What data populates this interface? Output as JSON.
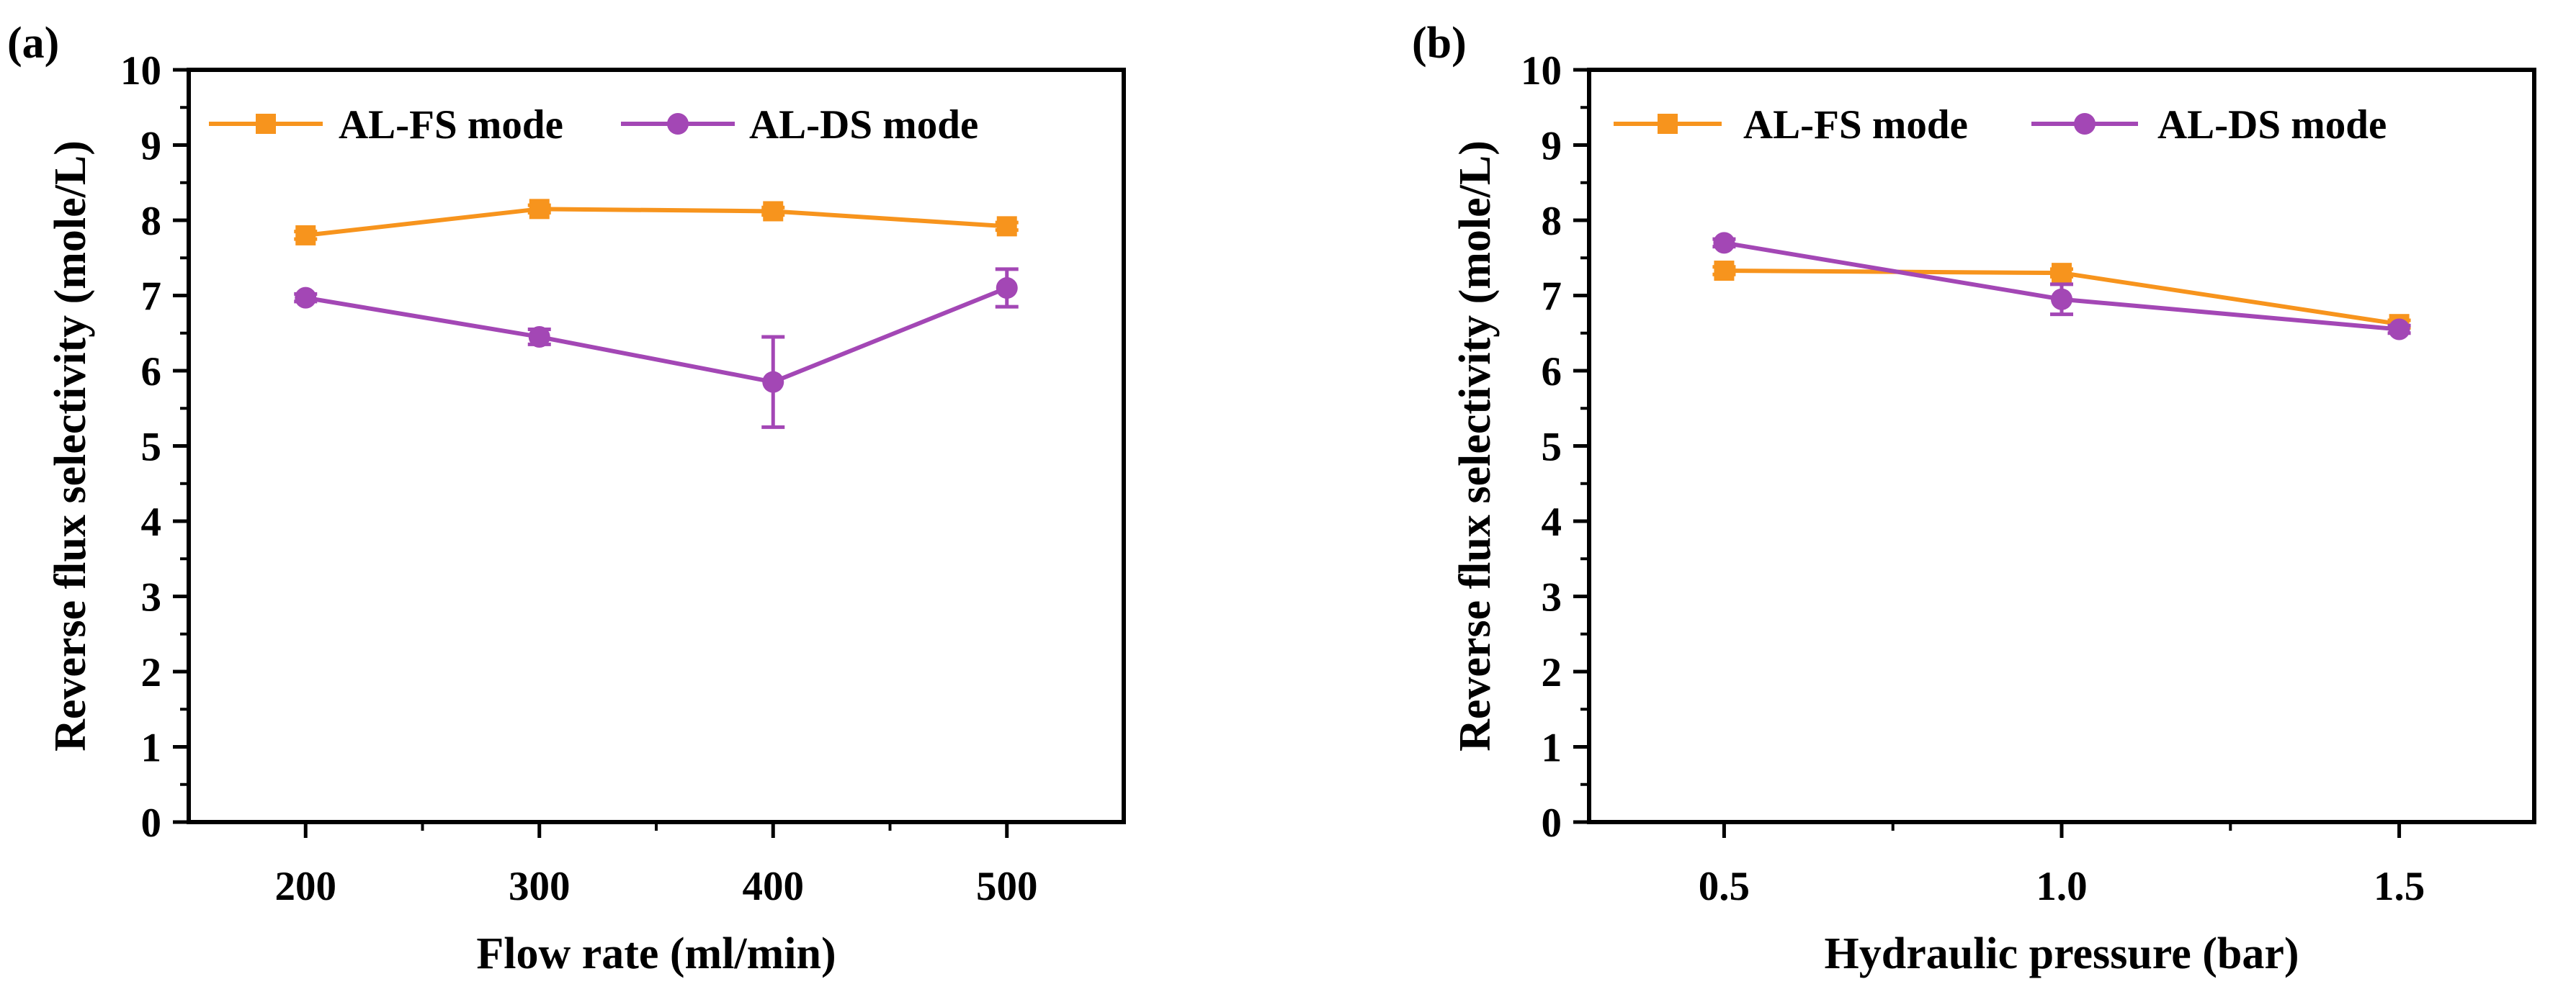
{
  "chart_data": [
    {
      "type": "line",
      "panel_label": "(a)",
      "xlabel": "Flow rate (ml/min)",
      "ylabel": "Reverse flux selectivity (mole/L)",
      "x": [
        200,
        300,
        400,
        500
      ],
      "x_tick_labels": [
        "200",
        "300",
        "400",
        "500"
      ],
      "x_minor_ticks": [
        250,
        350,
        450
      ],
      "xlim": [
        150,
        550
      ],
      "ylim": [
        0,
        10
      ],
      "y_ticks": [
        0,
        1,
        2,
        3,
        4,
        5,
        6,
        7,
        8,
        9,
        10
      ],
      "y_tick_labels": [
        "0",
        "1",
        "2",
        "3",
        "4",
        "5",
        "6",
        "7",
        "8",
        "9",
        "10"
      ],
      "legend_position": "top",
      "series": [
        {
          "name": "AL-FS mode",
          "marker": "square",
          "color": "#f7941d",
          "values": [
            7.8,
            8.15,
            8.12,
            7.92
          ],
          "errors": [
            0.05,
            0.05,
            0.05,
            0.05
          ]
        },
        {
          "name": "AL-DS mode",
          "marker": "circle",
          "color": "#a347b5",
          "values": [
            6.97,
            6.45,
            5.85,
            7.1
          ],
          "errors": [
            0.05,
            0.1,
            0.6,
            0.25
          ]
        }
      ]
    },
    {
      "type": "line",
      "panel_label": "(b)",
      "xlabel": "Hydraulic pressure (bar)",
      "ylabel": "Reverse flux selectivity (mole/L)",
      "x": [
        0.5,
        1.0,
        1.5
      ],
      "x_tick_labels": [
        "0.5",
        "1.0",
        "1.5"
      ],
      "x_minor_ticks": [
        0.75,
        1.25
      ],
      "xlim": [
        0.3,
        1.7
      ],
      "ylim": [
        0,
        10
      ],
      "y_ticks": [
        0,
        1,
        2,
        3,
        4,
        5,
        6,
        7,
        8,
        9,
        10
      ],
      "y_tick_labels": [
        "0",
        "1",
        "2",
        "3",
        "4",
        "5",
        "6",
        "7",
        "8",
        "9",
        "10"
      ],
      "legend_position": "top",
      "series": [
        {
          "name": "AL-FS mode",
          "marker": "square",
          "color": "#f7941d",
          "values": [
            7.33,
            7.3,
            6.62
          ],
          "errors": [
            0.05,
            0.05,
            0.05
          ]
        },
        {
          "name": "AL-DS mode",
          "marker": "circle",
          "color": "#a347b5",
          "values": [
            7.7,
            6.95,
            6.55
          ],
          "errors": [
            0.05,
            0.2,
            0.05
          ]
        }
      ]
    }
  ]
}
